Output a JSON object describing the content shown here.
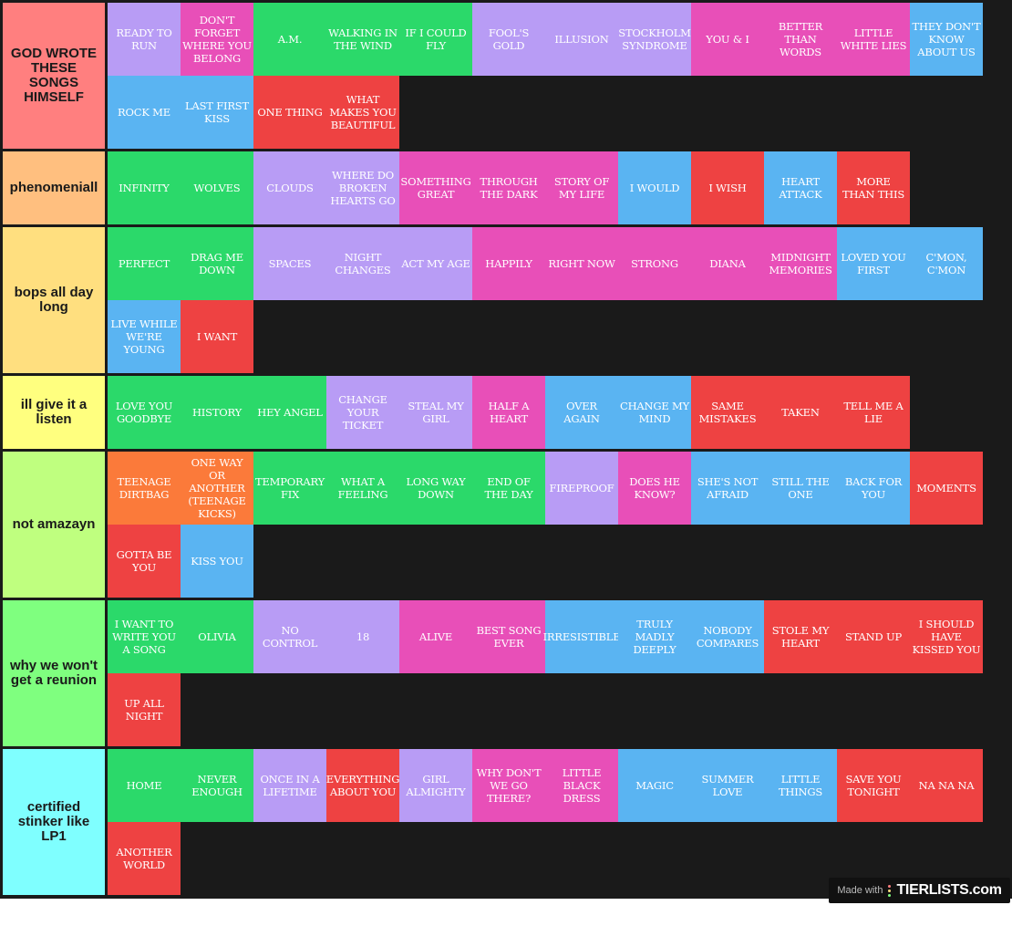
{
  "colors": {
    "green": "#2bd96a",
    "purple": "#b89cf5",
    "pink": "#e84fb8",
    "blue": "#5ab4f2",
    "red": "#ee4242",
    "orange": "#fb7a3a"
  },
  "tiers": [
    {
      "label": "GOD WROTE THESE SONGS HIMSELF",
      "color": "#ff7f7f",
      "items": [
        {
          "title": "READY TO RUN",
          "color": "purple"
        },
        {
          "title": "DON'T FORGET WHERE YOU BELONG",
          "color": "pink"
        },
        {
          "title": "A.M.",
          "color": "green"
        },
        {
          "title": "WALKING IN THE WIND",
          "color": "green"
        },
        {
          "title": "IF I COULD FLY",
          "color": "green"
        },
        {
          "title": "FOOL'S GOLD",
          "color": "purple"
        },
        {
          "title": "ILLUSION",
          "color": "purple"
        },
        {
          "title": "STOCKHOLM SYNDROME",
          "color": "purple"
        },
        {
          "title": "YOU & I",
          "color": "pink"
        },
        {
          "title": "BETTER THAN WORDS",
          "color": "pink"
        },
        {
          "title": "LITTLE WHITE LIES",
          "color": "pink"
        },
        {
          "title": "THEY DON'T KNOW ABOUT US",
          "color": "blue"
        },
        {
          "title": "ROCK ME",
          "color": "blue"
        },
        {
          "title": "LAST FIRST KISS",
          "color": "blue"
        },
        {
          "title": "ONE THING",
          "color": "red"
        },
        {
          "title": "WHAT MAKES YOU BEAUTIFUL",
          "color": "red"
        }
      ]
    },
    {
      "label": "phenomeniall",
      "color": "#ffbf7f",
      "items": [
        {
          "title": "INFINITY",
          "color": "green"
        },
        {
          "title": "WOLVES",
          "color": "green"
        },
        {
          "title": "CLOUDS",
          "color": "purple"
        },
        {
          "title": "WHERE DO BROKEN HEARTS GO",
          "color": "purple"
        },
        {
          "title": "SOMETHING GREAT",
          "color": "pink"
        },
        {
          "title": "THROUGH THE DARK",
          "color": "pink"
        },
        {
          "title": "STORY OF MY LIFE",
          "color": "pink"
        },
        {
          "title": "I WOULD",
          "color": "blue"
        },
        {
          "title": "I WISH",
          "color": "red"
        },
        {
          "title": "HEART ATTACK",
          "color": "blue"
        },
        {
          "title": "MORE THAN THIS",
          "color": "red"
        }
      ]
    },
    {
      "label": "bops all day long",
      "color": "#ffdf7f",
      "items": [
        {
          "title": "PERFECT",
          "color": "green"
        },
        {
          "title": "DRAG ME DOWN",
          "color": "green"
        },
        {
          "title": "SPACES",
          "color": "purple"
        },
        {
          "title": "NIGHT CHANGES",
          "color": "purple"
        },
        {
          "title": "ACT MY AGE",
          "color": "purple"
        },
        {
          "title": "HAPPILY",
          "color": "pink"
        },
        {
          "title": "RIGHT NOW",
          "color": "pink"
        },
        {
          "title": "STRONG",
          "color": "pink"
        },
        {
          "title": "DIANA",
          "color": "pink"
        },
        {
          "title": "MIDNIGHT MEMORIES",
          "color": "pink"
        },
        {
          "title": "LOVED YOU FIRST",
          "color": "blue"
        },
        {
          "title": "C'MON, C'MON",
          "color": "blue"
        },
        {
          "title": "LIVE WHILE WE'RE YOUNG",
          "color": "blue"
        },
        {
          "title": "I WANT",
          "color": "red"
        }
      ]
    },
    {
      "label": "ill give it a listen",
      "color": "#ffff7f",
      "items": [
        {
          "title": "LOVE YOU GOODBYE",
          "color": "green"
        },
        {
          "title": "HISTORY",
          "color": "green"
        },
        {
          "title": "HEY ANGEL",
          "color": "green"
        },
        {
          "title": "CHANGE YOUR TICKET",
          "color": "purple"
        },
        {
          "title": "STEAL MY GIRL",
          "color": "purple"
        },
        {
          "title": "HALF A HEART",
          "color": "pink"
        },
        {
          "title": "OVER AGAIN",
          "color": "blue"
        },
        {
          "title": "CHANGE MY MIND",
          "color": "blue"
        },
        {
          "title": "SAME MISTAKES",
          "color": "red"
        },
        {
          "title": "TAKEN",
          "color": "red"
        },
        {
          "title": "TELL ME A LIE",
          "color": "red"
        }
      ]
    },
    {
      "label": "not amazayn",
      "color": "#bfff7f",
      "items": [
        {
          "title": "TEENAGE DIRTBAG",
          "color": "orange"
        },
        {
          "title": "ONE WAY OR ANOTHER (TEENAGE KICKS)",
          "color": "orange"
        },
        {
          "title": "TEMPORARY FIX",
          "color": "green"
        },
        {
          "title": "WHAT A FEELING",
          "color": "green"
        },
        {
          "title": "LONG WAY DOWN",
          "color": "green"
        },
        {
          "title": "END OF THE DAY",
          "color": "green"
        },
        {
          "title": "FIREPROOF",
          "color": "purple"
        },
        {
          "title": "DOES HE KNOW?",
          "color": "pink"
        },
        {
          "title": "SHE'S NOT AFRAID",
          "color": "blue"
        },
        {
          "title": "STILL THE ONE",
          "color": "blue"
        },
        {
          "title": "BACK FOR YOU",
          "color": "blue"
        },
        {
          "title": "MOMENTS",
          "color": "red"
        },
        {
          "title": "GOTTA BE YOU",
          "color": "red"
        },
        {
          "title": "KISS YOU",
          "color": "blue"
        }
      ]
    },
    {
      "label": "why we won't get a reunion",
      "color": "#7fff7f",
      "items": [
        {
          "title": "I WANT TO WRITE YOU A SONG",
          "color": "green"
        },
        {
          "title": "OLIVIA",
          "color": "green"
        },
        {
          "title": "NO CONTROL",
          "color": "purple"
        },
        {
          "title": "18",
          "color": "purple"
        },
        {
          "title": "ALIVE",
          "color": "pink"
        },
        {
          "title": "BEST SONG EVER",
          "color": "pink"
        },
        {
          "title": "IRRESISTIBLE",
          "color": "blue"
        },
        {
          "title": "TRULY MADLY DEEPLY",
          "color": "blue"
        },
        {
          "title": "NOBODY COMPARES",
          "color": "blue"
        },
        {
          "title": "STOLE MY HEART",
          "color": "red"
        },
        {
          "title": "STAND UP",
          "color": "red"
        },
        {
          "title": "I SHOULD HAVE KISSED YOU",
          "color": "red"
        },
        {
          "title": "UP ALL NIGHT",
          "color": "red"
        }
      ]
    },
    {
      "label": "certified stinker like LP1",
      "color": "#7fffff",
      "items": [
        {
          "title": "HOME",
          "color": "green"
        },
        {
          "title": "NEVER ENOUGH",
          "color": "green"
        },
        {
          "title": "ONCE IN A LIFETIME",
          "color": "purple"
        },
        {
          "title": "EVERYTHING ABOUT YOU",
          "color": "red"
        },
        {
          "title": "GIRL ALMIGHTY",
          "color": "purple"
        },
        {
          "title": "WHY DON'T WE GO THERE?",
          "color": "pink"
        },
        {
          "title": "LITTLE BLACK DRESS",
          "color": "pink"
        },
        {
          "title": "MAGIC",
          "color": "blue"
        },
        {
          "title": "SUMMER LOVE",
          "color": "blue"
        },
        {
          "title": "LITTLE THINGS",
          "color": "blue"
        },
        {
          "title": "SAVE YOU TONIGHT",
          "color": "red"
        },
        {
          "title": "NA NA NA",
          "color": "red"
        },
        {
          "title": "ANOTHER WORLD",
          "color": "red"
        }
      ]
    }
  ],
  "watermark": {
    "made_with": "Made with",
    "brand": "TIERLISTS.com",
    "dot_colors": [
      "#ff7f7f",
      "#ffdf7f",
      "#7fff7f"
    ]
  }
}
